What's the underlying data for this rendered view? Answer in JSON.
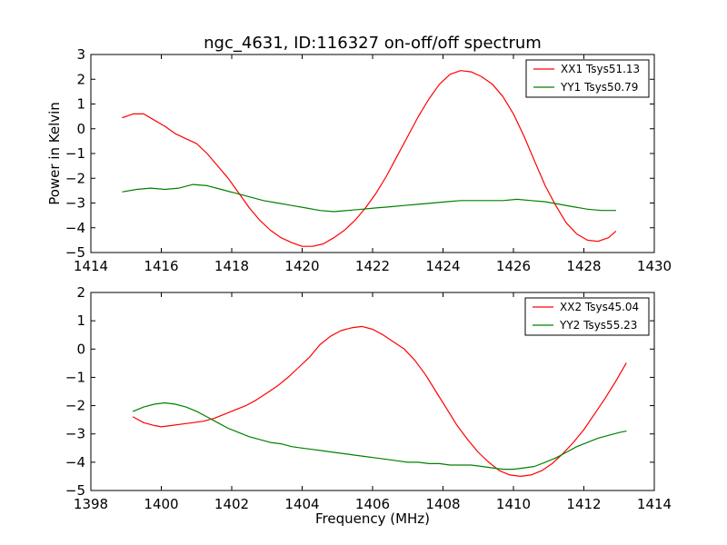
{
  "chart_data": [
    {
      "type": "line",
      "title": "ngc_4631, ID:116327 on-off/off spectrum",
      "xlabel": "",
      "ylabel": "Power in Kelvin",
      "xlim": [
        1414,
        1430
      ],
      "ylim": [
        -5,
        3
      ],
      "xticks": [
        1414,
        1416,
        1418,
        1420,
        1422,
        1424,
        1426,
        1428,
        1430
      ],
      "yticks": [
        -5,
        -4,
        -3,
        -2,
        -1,
        0,
        1,
        2,
        3
      ],
      "legend_position": "top-right",
      "grid": false,
      "series": [
        {
          "name": "XX1 Tsys51.13",
          "color": "#ff0000",
          "x": [
            1414.9,
            1415.2,
            1415.5,
            1415.8,
            1416.1,
            1416.4,
            1416.7,
            1417.0,
            1417.3,
            1417.6,
            1417.9,
            1418.2,
            1418.5,
            1418.8,
            1419.1,
            1419.4,
            1419.7,
            1420.0,
            1420.3,
            1420.6,
            1420.9,
            1421.2,
            1421.5,
            1421.8,
            1422.1,
            1422.4,
            1422.7,
            1423.0,
            1423.3,
            1423.6,
            1423.9,
            1424.2,
            1424.5,
            1424.8,
            1425.1,
            1425.4,
            1425.7,
            1426.0,
            1426.3,
            1426.6,
            1426.9,
            1427.2,
            1427.5,
            1427.8,
            1428.1,
            1428.4,
            1428.7,
            1428.9
          ],
          "y": [
            0.45,
            0.6,
            0.6,
            0.35,
            0.1,
            -0.2,
            -0.4,
            -0.6,
            -1.0,
            -1.5,
            -2.0,
            -2.6,
            -3.2,
            -3.7,
            -4.1,
            -4.4,
            -4.6,
            -4.75,
            -4.75,
            -4.65,
            -4.4,
            -4.1,
            -3.7,
            -3.2,
            -2.6,
            -1.9,
            -1.1,
            -0.3,
            0.5,
            1.2,
            1.8,
            2.2,
            2.35,
            2.3,
            2.1,
            1.8,
            1.3,
            0.6,
            -0.3,
            -1.3,
            -2.3,
            -3.1,
            -3.8,
            -4.25,
            -4.5,
            -4.55,
            -4.4,
            -4.15
          ]
        },
        {
          "name": "YY1 Tsys50.79",
          "color": "#008000",
          "x": [
            1414.9,
            1415.3,
            1415.7,
            1416.1,
            1416.5,
            1416.9,
            1417.3,
            1417.7,
            1418.1,
            1418.5,
            1418.9,
            1419.3,
            1419.7,
            1420.1,
            1420.5,
            1420.9,
            1421.3,
            1421.7,
            1422.1,
            1422.5,
            1422.9,
            1423.3,
            1423.7,
            1424.1,
            1424.5,
            1424.9,
            1425.3,
            1425.7,
            1426.1,
            1426.5,
            1426.9,
            1427.3,
            1427.7,
            1428.1,
            1428.5,
            1428.9
          ],
          "y": [
            -2.55,
            -2.45,
            -2.4,
            -2.45,
            -2.4,
            -2.25,
            -2.3,
            -2.45,
            -2.6,
            -2.75,
            -2.9,
            -3.0,
            -3.1,
            -3.2,
            -3.3,
            -3.35,
            -3.3,
            -3.25,
            -3.2,
            -3.15,
            -3.1,
            -3.05,
            -3.0,
            -2.95,
            -2.9,
            -2.9,
            -2.9,
            -2.9,
            -2.85,
            -2.9,
            -2.95,
            -3.05,
            -3.15,
            -3.25,
            -3.3,
            -3.3
          ]
        }
      ]
    },
    {
      "type": "line",
      "title": "",
      "xlabel": "Frequency (MHz)",
      "ylabel": "",
      "xlim": [
        1398,
        1414
      ],
      "ylim": [
        -5,
        2
      ],
      "xticks": [
        1398,
        1400,
        1402,
        1404,
        1406,
        1408,
        1410,
        1412,
        1414
      ],
      "yticks": [
        -5,
        -4,
        -3,
        -2,
        -1,
        0,
        1,
        2
      ],
      "legend_position": "top-right",
      "grid": false,
      "series": [
        {
          "name": "XX2 Tsys45.04",
          "color": "#ff0000",
          "x": [
            1399.2,
            1399.5,
            1399.8,
            1400.0,
            1400.3,
            1400.6,
            1400.9,
            1401.2,
            1401.5,
            1401.8,
            1402.1,
            1402.4,
            1402.7,
            1403.0,
            1403.3,
            1403.6,
            1403.9,
            1404.2,
            1404.5,
            1404.8,
            1405.1,
            1405.4,
            1405.7,
            1406.0,
            1406.3,
            1406.6,
            1406.9,
            1407.2,
            1407.5,
            1407.8,
            1408.1,
            1408.4,
            1408.7,
            1409.0,
            1409.3,
            1409.6,
            1409.9,
            1410.2,
            1410.5,
            1410.8,
            1411.1,
            1411.4,
            1411.7,
            1412.0,
            1412.3,
            1412.6,
            1412.9,
            1413.2
          ],
          "y": [
            -2.4,
            -2.6,
            -2.7,
            -2.75,
            -2.7,
            -2.65,
            -2.6,
            -2.55,
            -2.45,
            -2.3,
            -2.15,
            -2.0,
            -1.8,
            -1.55,
            -1.3,
            -1.0,
            -0.65,
            -0.3,
            0.15,
            0.45,
            0.65,
            0.75,
            0.8,
            0.7,
            0.5,
            0.25,
            0.0,
            -0.4,
            -0.9,
            -1.5,
            -2.1,
            -2.7,
            -3.2,
            -3.65,
            -4.0,
            -4.3,
            -4.45,
            -4.5,
            -4.45,
            -4.3,
            -4.05,
            -3.7,
            -3.3,
            -2.85,
            -2.3,
            -1.75,
            -1.15,
            -0.5
          ]
        },
        {
          "name": "YY2 Tsys55.23",
          "color": "#008000",
          "x": [
            1399.2,
            1399.5,
            1399.8,
            1400.1,
            1400.4,
            1400.7,
            1401.0,
            1401.3,
            1401.6,
            1401.9,
            1402.2,
            1402.5,
            1402.8,
            1403.1,
            1403.4,
            1403.7,
            1404.0,
            1404.3,
            1404.6,
            1404.9,
            1405.2,
            1405.5,
            1405.8,
            1406.1,
            1406.4,
            1406.7,
            1407.0,
            1407.3,
            1407.6,
            1407.9,
            1408.2,
            1408.5,
            1408.8,
            1409.1,
            1409.4,
            1409.7,
            1410.0,
            1410.3,
            1410.6,
            1410.9,
            1411.2,
            1411.5,
            1411.8,
            1412.1,
            1412.4,
            1412.7,
            1413.0,
            1413.2
          ],
          "y": [
            -2.2,
            -2.05,
            -1.95,
            -1.9,
            -1.95,
            -2.05,
            -2.2,
            -2.4,
            -2.6,
            -2.8,
            -2.95,
            -3.1,
            -3.2,
            -3.3,
            -3.35,
            -3.45,
            -3.5,
            -3.55,
            -3.6,
            -3.65,
            -3.7,
            -3.75,
            -3.8,
            -3.85,
            -3.9,
            -3.95,
            -4.0,
            -4.0,
            -4.05,
            -4.05,
            -4.1,
            -4.1,
            -4.1,
            -4.15,
            -4.2,
            -4.25,
            -4.25,
            -4.2,
            -4.15,
            -4.0,
            -3.85,
            -3.65,
            -3.45,
            -3.3,
            -3.15,
            -3.05,
            -2.95,
            -2.9
          ]
        }
      ]
    }
  ]
}
